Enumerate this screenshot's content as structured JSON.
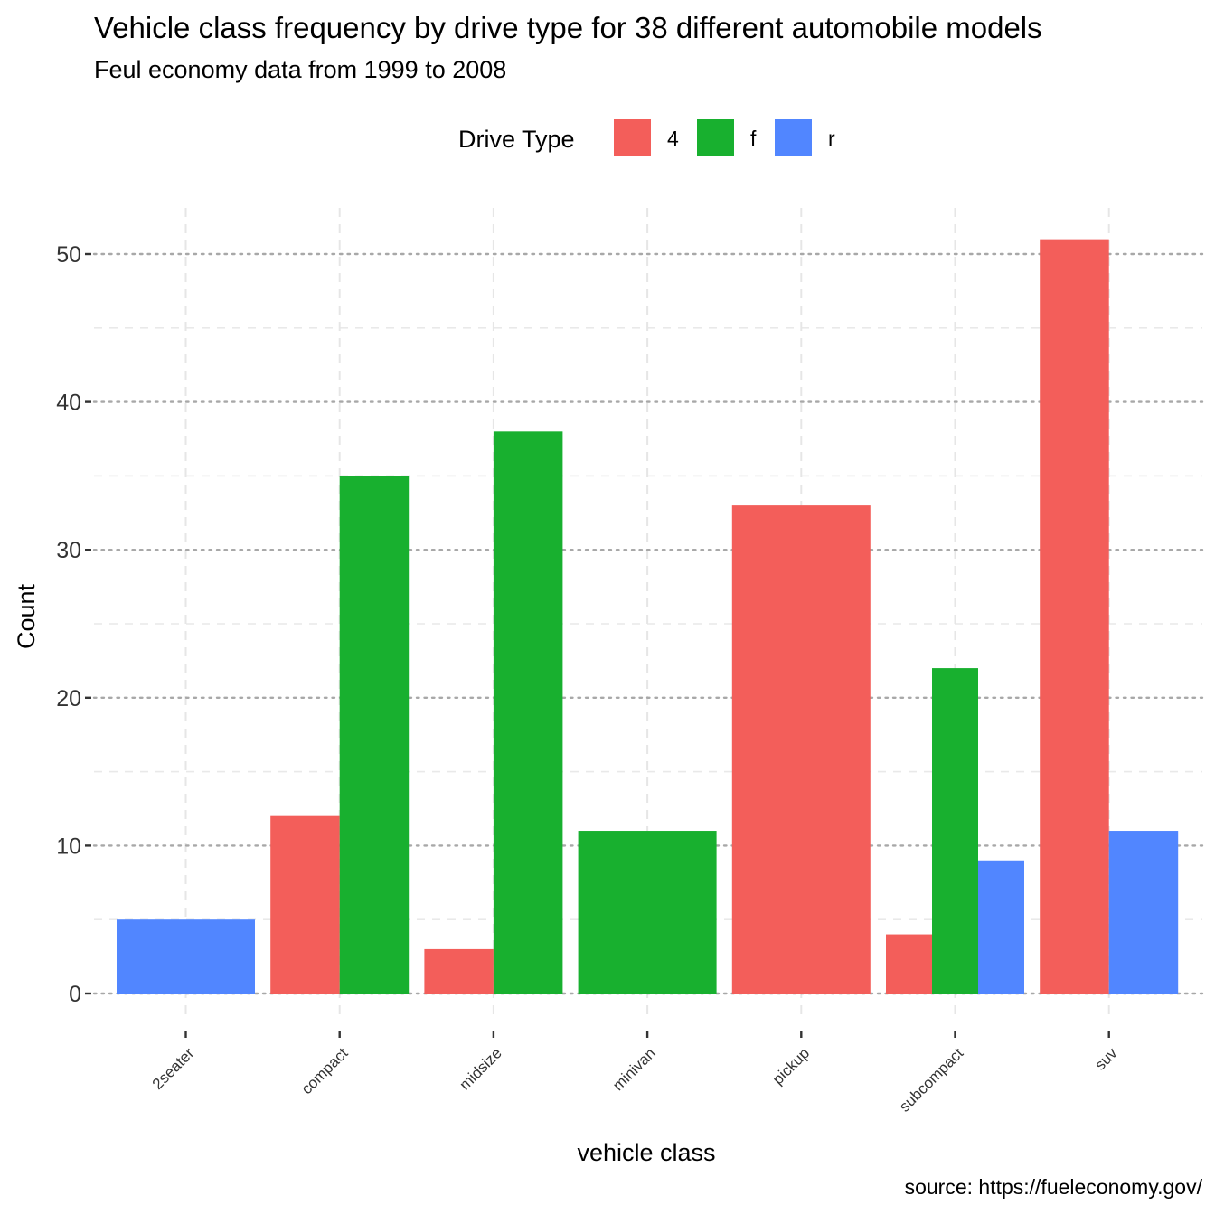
{
  "chart_data": {
    "type": "bar",
    "title": "Vehicle class frequency by drive type for 38 different automobile models",
    "subtitle": "Feul economy data from 1999 to 2008",
    "xlabel": "vehicle class",
    "ylabel": "Count",
    "caption": "source: https://fueleconomy.gov/",
    "legend": {
      "title": "Drive Type",
      "position": "top"
    },
    "categories": [
      "2seater",
      "compact",
      "midsize",
      "minivan",
      "pickup",
      "subcompact",
      "suv"
    ],
    "series": [
      {
        "name": "4",
        "color": "#F35E5A",
        "values": [
          0,
          12,
          3,
          0,
          33,
          4,
          51
        ]
      },
      {
        "name": "f",
        "color": "#18B02F",
        "values": [
          0,
          35,
          38,
          11,
          0,
          22,
          0
        ]
      },
      {
        "name": "r",
        "color": "#5186FF",
        "values": [
          5,
          0,
          0,
          0,
          0,
          9,
          11
        ]
      }
    ],
    "ylim": [
      0,
      53
    ],
    "yticks": [
      0,
      10,
      20,
      30,
      40,
      50
    ],
    "grid": true
  }
}
